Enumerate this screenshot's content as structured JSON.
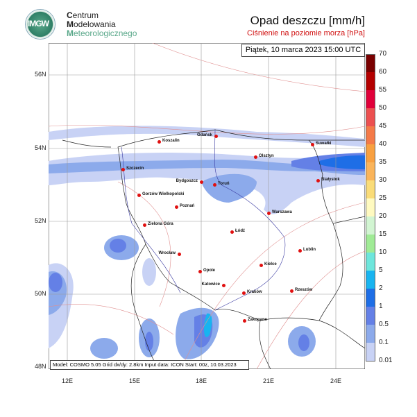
{
  "logo": {
    "text": "IMGW"
  },
  "org": {
    "line1_initial": "C",
    "line1": "entrum",
    "line2_initial": "M",
    "line2": "odelowania",
    "line3_initial": "M",
    "line3": "eteorologicznego"
  },
  "header": {
    "title": "Opad deszczu [mm/h]",
    "subtitle": "Ciśnienie na poziomie morza [hPa]"
  },
  "map": {
    "date": "Piątek, 10 marca 2023 15:00 UTC",
    "info": "Model: COSMO 5.05  Grid dx/dy: 2.8km  Input data: ICON  Start: 00z, 10.03.2023",
    "lat_labels": [
      "56N",
      "54N",
      "52N",
      "50N",
      "48N"
    ],
    "lon_labels": [
      "12E",
      "15E",
      "18E",
      "21E",
      "24E"
    ],
    "cities": [
      {
        "name": "Koszalin"
      },
      {
        "name": "Gdańsk"
      },
      {
        "name": "Suwałki"
      },
      {
        "name": "Olsztyn"
      },
      {
        "name": "Szczecin"
      },
      {
        "name": "Białystok"
      },
      {
        "name": "Bydgoszcz"
      },
      {
        "name": "Toruń"
      },
      {
        "name": "Gorzów Wielkopolski"
      },
      {
        "name": "Poznań"
      },
      {
        "name": "Warszawa"
      },
      {
        "name": "Zielona Góra"
      },
      {
        "name": "Łódź"
      },
      {
        "name": "Wrocław"
      },
      {
        "name": "Lublin"
      },
      {
        "name": "Kielce"
      },
      {
        "name": "Opole"
      },
      {
        "name": "Katowice"
      },
      {
        "name": "Kraków"
      },
      {
        "name": "Rzeszów"
      },
      {
        "name": "Zakopane"
      }
    ]
  },
  "colorbar": {
    "labels": [
      "70",
      "60",
      "55",
      "50",
      "45",
      "40",
      "35",
      "30",
      "25",
      "20",
      "15",
      "10",
      "5",
      "2",
      "1",
      "0.5",
      "0.1",
      "0.01"
    ],
    "colors": [
      "#7a0000",
      "#b40000",
      "#e0003a",
      "#ec5050",
      "#f47a48",
      "#f8a040",
      "#fab45a",
      "#fadc78",
      "#fffac0",
      "#d2f5d2",
      "#a0eb96",
      "#6ee6dc",
      "#18b4f0",
      "#1e6ee6",
      "#6480e6",
      "#8caaeb",
      "#c8d2f5"
    ]
  }
}
